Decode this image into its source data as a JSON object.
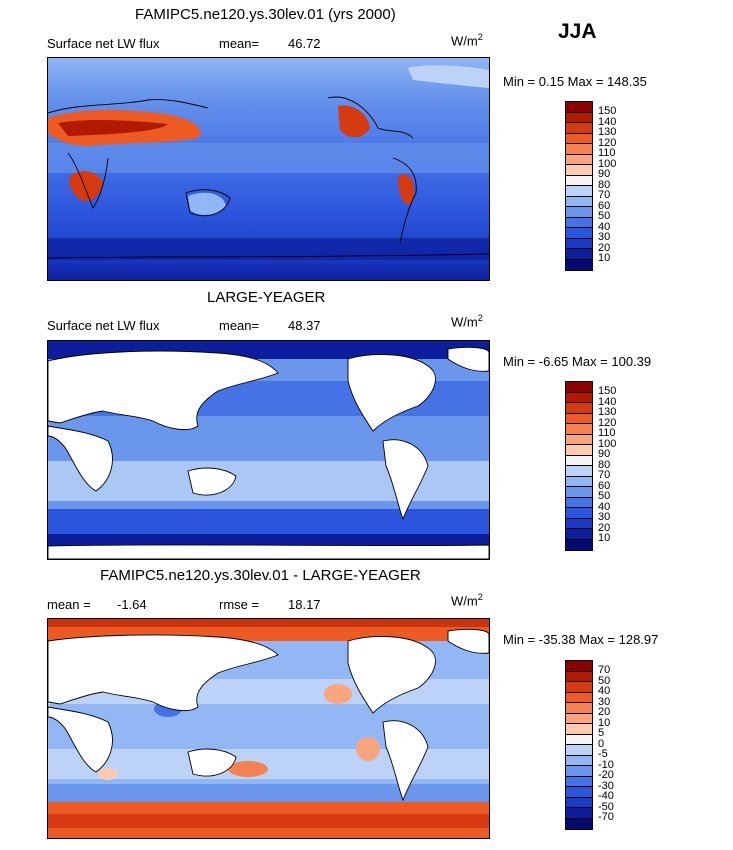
{
  "season": "JJA",
  "panels": [
    {
      "title": "FAMIPC5.ne120.ys.30lev.01 (yrs 2000)",
      "left_label": "Surface net LW flux",
      "stat_label": "mean=",
      "stat_value": "46.72",
      "unit": "W/m",
      "unit_exp": "2",
      "minmax": "Min =   0.15 Max = 148.35",
      "levels": [
        "150",
        "140",
        "130",
        "120",
        "110",
        "100",
        "90",
        "80",
        "70",
        "60",
        "50",
        "40",
        "30",
        "20",
        "10"
      ],
      "colors": [
        "#8b0000",
        "#b21a00",
        "#d63a10",
        "#ee5a24",
        "#f58252",
        "#f9a57f",
        "#fccab0",
        "#f3f3f3",
        "#bcd3f7",
        "#93b7f4",
        "#6a96ec",
        "#4573e6",
        "#2b55dc",
        "#1b3bc4",
        "#0c1e9c",
        "#050a6e"
      ],
      "land_fill": "colored"
    },
    {
      "title": "LARGE-YEAGER",
      "left_label": "Surface net LW flux",
      "stat_label": "mean=",
      "stat_value": "48.37",
      "unit": "W/m",
      "unit_exp": "2",
      "minmax": "Min =  -6.65 Max = 100.39",
      "levels": [
        "150",
        "140",
        "130",
        "120",
        "110",
        "100",
        "90",
        "80",
        "70",
        "60",
        "50",
        "40",
        "30",
        "20",
        "10"
      ],
      "colors": [
        "#8b0000",
        "#b21a00",
        "#d63a10",
        "#ee5a24",
        "#f58252",
        "#f9a57f",
        "#fccab0",
        "#f3f3f3",
        "#bcd3f7",
        "#93b7f4",
        "#6a96ec",
        "#4573e6",
        "#2b55dc",
        "#1b3bc4",
        "#0c1e9c",
        "#050a6e"
      ],
      "land_fill": "white"
    },
    {
      "title": "FAMIPC5.ne120.ys.30lev.01 - LARGE-YEAGER",
      "left_label": "mean =",
      "left_value": "-1.64",
      "stat_label": "rmse =",
      "stat_value": "18.17",
      "unit": "W/m",
      "unit_exp": "2",
      "minmax": "Min = -35.38 Max = 128.97",
      "levels": [
        "70",
        "50",
        "40",
        "30",
        "20",
        "10",
        "5",
        "0",
        "-5",
        "-10",
        "-20",
        "-30",
        "-40",
        "-50",
        "-70"
      ],
      "colors": [
        "#8b0000",
        "#b21a00",
        "#d63a10",
        "#ee5a24",
        "#f58252",
        "#f9a57f",
        "#fccab0",
        "#f3f3f3",
        "#bcd3f7",
        "#93b7f4",
        "#6a96ec",
        "#4573e6",
        "#2b55dc",
        "#1b3bc4",
        "#0c1e9c",
        "#050a6e"
      ],
      "land_fill": "white"
    }
  ]
}
